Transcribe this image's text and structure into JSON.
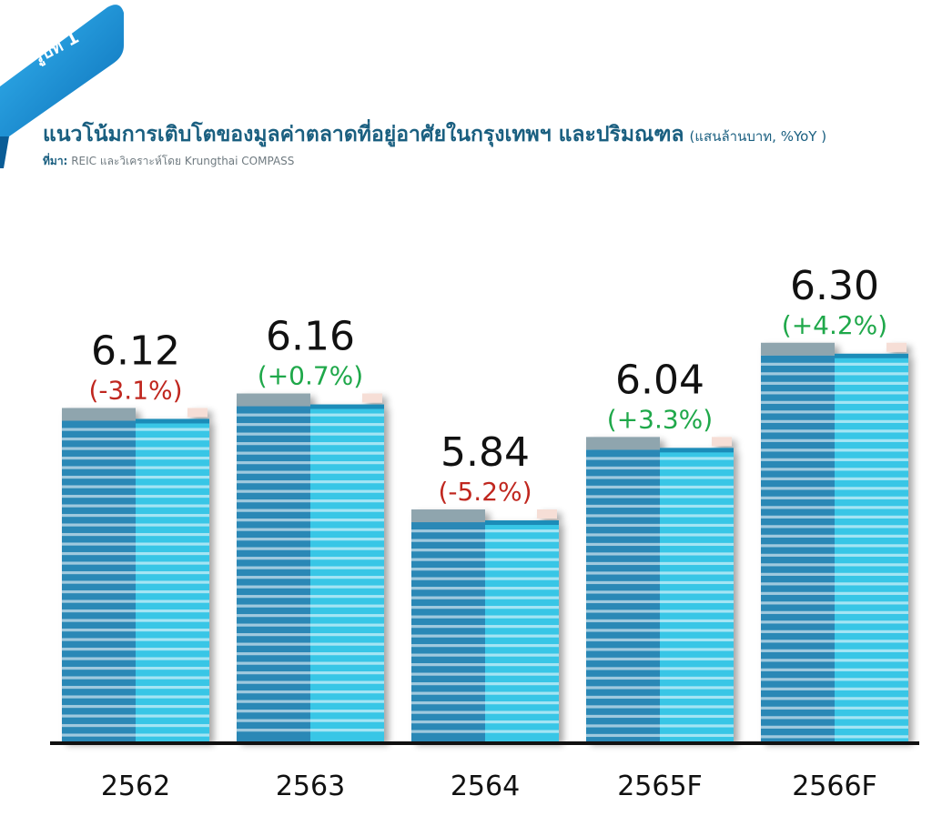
{
  "badge": {
    "label": "รูปที่ 1"
  },
  "header": {
    "title": "แนวโน้มการเติบโตของมูลค่าตลาดที่อยู่อาศัยในกรุงเทพฯ และปริมณฑล",
    "unit": "(แสนล้านบาท, %YoY )",
    "source_label": "ที่มา:",
    "source_text": "REIC และวิเคราะห์โดย Krungthai COMPASS"
  },
  "colors": {
    "positive": "#1fa84a",
    "negative": "#c0271f",
    "bar_dark": "#2c88b6",
    "bar_light": "#37c6e6",
    "cap": "#8fa5ae",
    "ribbon": "#1b8fd8"
  },
  "chart_data": {
    "type": "bar",
    "categories": [
      "2562",
      "2563",
      "2564",
      "2565F",
      "2566F"
    ],
    "values": [
      6.12,
      6.16,
      5.84,
      6.04,
      6.3
    ],
    "value_labels": [
      "6.12",
      "6.16",
      "5.84",
      "6.04",
      "6.30"
    ],
    "change_labels": [
      "(-3.1%)",
      "(+0.7%)",
      "(-5.2%)",
      "(+3.3%)",
      "(+4.2%)"
    ],
    "changes": [
      -3.1,
      0.7,
      -5.2,
      3.3,
      4.2
    ],
    "title": "แนวโน้มการเติบโตของมูลค่าตลาดที่อยู่อาศัยในกรุงเทพฯ และปริมณฑล",
    "xlabel": "",
    "ylabel": "",
    "ylim": [
      5.2,
      6.45
    ],
    "grid": false
  }
}
